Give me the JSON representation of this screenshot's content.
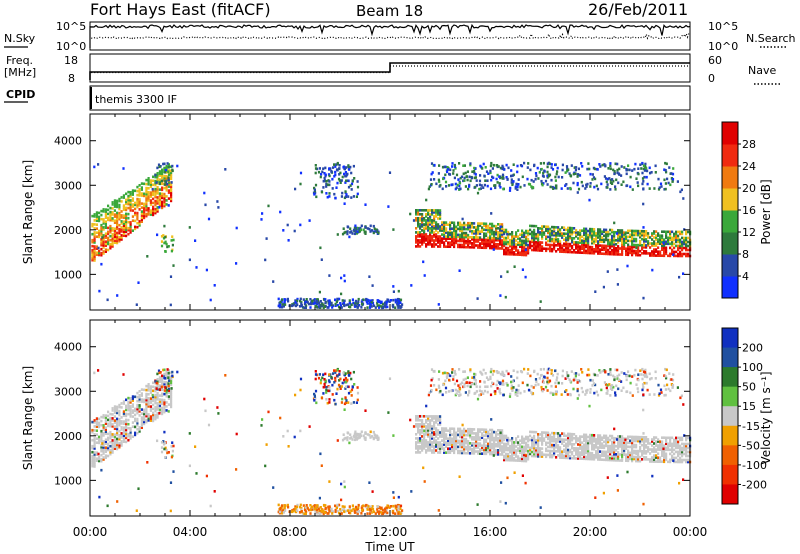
{
  "header": {
    "station": "Fort Hays East (fitACF)",
    "beam": "Beam 18",
    "date": "26/Feb/2011"
  },
  "top_panels": {
    "nsky_label": "N.Sky",
    "nsearch_label": "N.Search",
    "noise_ticks_left": [
      "10^5",
      "10^0"
    ],
    "noise_ticks_right": [
      "10^5",
      "10^0"
    ],
    "freq_label": [
      "Freq.",
      "[MHz]"
    ],
    "freq_ticks": [
      "18",
      "8"
    ],
    "nave_label": "Nave",
    "nave_ticks": [
      "60",
      "0"
    ],
    "cpid_label": "CPID",
    "cpid_value": "themis 3300 IF"
  },
  "chart_data": [
    {
      "type": "heatmap",
      "name": "power",
      "ylabel": "Slant Range [km]",
      "xlabel": "",
      "x_ticks": [
        "00:00",
        "04:00",
        "08:00",
        "12:00",
        "16:00",
        "20:00",
        "00:00"
      ],
      "y_ticks": [
        1000,
        2000,
        3000,
        4000
      ],
      "ylim": [
        200,
        4600
      ],
      "xlim_hours": [
        0,
        24
      ],
      "colorbar": {
        "label": "Power [dB]",
        "ticks": [
          4,
          8,
          12,
          16,
          20,
          24,
          28
        ],
        "range": [
          0,
          32
        ],
        "colors": [
          "#1030ff",
          "#2848a8",
          "#2e7a3c",
          "#3aa83a",
          "#f0c020",
          "#f07a10",
          "#f02a10",
          "#e00000"
        ]
      },
      "echo_regions": [
        {
          "t": [
            0.05,
            3.2
          ],
          "r_start": [
            1250,
            2600
          ],
          "r_end": [
            2300,
            3500
          ],
          "level": "mixed-high"
        },
        {
          "t": [
            13.0,
            24.0
          ],
          "r_center": 1750,
          "width": 500,
          "level": "high"
        },
        {
          "t": [
            13.5,
            23.5
          ],
          "r": [
            2900,
            3500
          ],
          "level": "low"
        },
        {
          "t": [
            8.0,
            12.0
          ],
          "r": [
            250,
            450
          ],
          "level": "low"
        },
        {
          "t": [
            9.0,
            11.0
          ],
          "r": [
            2900,
            3500
          ],
          "level": "low"
        }
      ]
    },
    {
      "type": "heatmap",
      "name": "velocity",
      "ylabel": "Slant Range [km]",
      "xlabel": "Time UT",
      "x_ticks": [
        "00:00",
        "04:00",
        "08:00",
        "12:00",
        "16:00",
        "20:00",
        "00:00"
      ],
      "y_ticks": [
        1000,
        2000,
        3000,
        4000
      ],
      "ylim": [
        200,
        4600
      ],
      "xlim_hours": [
        0,
        24
      ],
      "colorbar": {
        "label": "Velocity [m s⁻¹]",
        "ticks": [
          200,
          100,
          50,
          15,
          -15,
          -50,
          -100,
          -200
        ],
        "colors": [
          "#1030c0",
          "#2050a0",
          "#2c7a2c",
          "#60c040",
          "#c8c8c8",
          "#f0a000",
          "#f06000",
          "#f03000",
          "#e00000"
        ]
      },
      "ground_scatter_color": "#c8c8c8"
    }
  ]
}
